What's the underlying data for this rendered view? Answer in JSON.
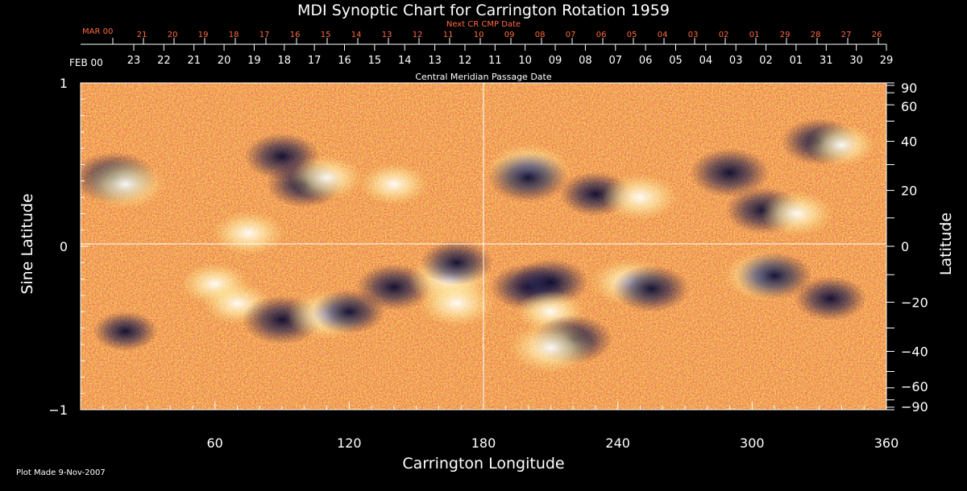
{
  "chart_data": {
    "type": "heatmap",
    "title": "MDI Synoptic Chart for Carrington Rotation 1959",
    "xlabel": "Carrington Longitude",
    "ylabel_left": "Sine Latitude",
    "ylabel_right": "Latitude",
    "xlim": [
      0,
      360
    ],
    "ylim": [
      -1,
      1
    ],
    "x_ticks": [
      60,
      120,
      180,
      240,
      300,
      360
    ],
    "y_left_ticks": [
      1,
      0,
      -1
    ],
    "y_right_ticks": [
      90,
      60,
      40,
      20,
      0,
      -20,
      -40,
      -60,
      -90
    ],
    "grid_lines": {
      "longitude": 180,
      "sine_latitude": 0
    },
    "top_axis": {
      "label": "Central Meridian Passage Date",
      "start_label": "FEB 00",
      "dates": [
        "23",
        "22",
        "21",
        "20",
        "19",
        "18",
        "17",
        "16",
        "15",
        "14",
        "13",
        "12",
        "11",
        "10",
        "09",
        "08",
        "07",
        "06",
        "05",
        "04",
        "03",
        "02",
        "01",
        "31",
        "30",
        "29"
      ]
    },
    "next_axis": {
      "label": "Next CR CMP Date",
      "start_label": "MAR 00",
      "dates": [
        "21",
        "20",
        "19",
        "18",
        "17",
        "16",
        "15",
        "14",
        "13",
        "12",
        "11",
        "10",
        "09",
        "08",
        "07",
        "06",
        "05",
        "04",
        "03",
        "02",
        "01",
        "29",
        "28",
        "27",
        "26"
      ]
    },
    "colors": {
      "negative": "#14143c",
      "background": "#e8481e",
      "positive": "#fff4c8",
      "next_axis": "#ff6a3d"
    },
    "regions": [
      {
        "lon": 15,
        "slat": 0.42,
        "polarity": "negative",
        "strength": 1.0
      },
      {
        "lon": 20,
        "slat": 0.38,
        "polarity": "positive",
        "strength": 0.9
      },
      {
        "lon": 90,
        "slat": 0.55,
        "polarity": "negative",
        "strength": 0.8
      },
      {
        "lon": 100,
        "slat": 0.38,
        "polarity": "negative",
        "strength": 0.8
      },
      {
        "lon": 110,
        "slat": 0.42,
        "polarity": "positive",
        "strength": 0.7
      },
      {
        "lon": 75,
        "slat": 0.08,
        "polarity": "positive",
        "strength": 0.7
      },
      {
        "lon": 140,
        "slat": 0.38,
        "polarity": "positive",
        "strength": 0.6
      },
      {
        "lon": 200,
        "slat": 0.47,
        "polarity": "positive",
        "strength": 1.0
      },
      {
        "lon": 200,
        "slat": 0.42,
        "polarity": "negative",
        "strength": 0.9
      },
      {
        "lon": 230,
        "slat": 0.32,
        "polarity": "negative",
        "strength": 0.7
      },
      {
        "lon": 250,
        "slat": 0.3,
        "polarity": "positive",
        "strength": 0.8
      },
      {
        "lon": 290,
        "slat": 0.45,
        "polarity": "negative",
        "strength": 0.9
      },
      {
        "lon": 305,
        "slat": 0.22,
        "polarity": "negative",
        "strength": 0.8
      },
      {
        "lon": 320,
        "slat": 0.2,
        "polarity": "positive",
        "strength": 0.7
      },
      {
        "lon": 330,
        "slat": 0.64,
        "polarity": "negative",
        "strength": 0.8
      },
      {
        "lon": 340,
        "slat": 0.62,
        "polarity": "positive",
        "strength": 0.6
      },
      {
        "lon": 60,
        "slat": -0.23,
        "polarity": "positive",
        "strength": 0.6
      },
      {
        "lon": 70,
        "slat": -0.35,
        "polarity": "positive",
        "strength": 0.6
      },
      {
        "lon": 90,
        "slat": -0.45,
        "polarity": "negative",
        "strength": 0.9
      },
      {
        "lon": 110,
        "slat": -0.42,
        "polarity": "positive",
        "strength": 0.9
      },
      {
        "lon": 120,
        "slat": -0.4,
        "polarity": "negative",
        "strength": 0.7
      },
      {
        "lon": 140,
        "slat": -0.25,
        "polarity": "negative",
        "strength": 0.8
      },
      {
        "lon": 165,
        "slat": -0.2,
        "polarity": "positive",
        "strength": 1.0
      },
      {
        "lon": 168,
        "slat": -0.35,
        "polarity": "positive",
        "strength": 0.8
      },
      {
        "lon": 168,
        "slat": -0.1,
        "polarity": "negative",
        "strength": 0.7
      },
      {
        "lon": 200,
        "slat": -0.25,
        "polarity": "negative",
        "strength": 0.8
      },
      {
        "lon": 210,
        "slat": -0.22,
        "polarity": "negative",
        "strength": 0.8
      },
      {
        "lon": 210,
        "slat": -0.4,
        "polarity": "positive",
        "strength": 0.6
      },
      {
        "lon": 220,
        "slat": -0.57,
        "polarity": "negative",
        "strength": 0.9
      },
      {
        "lon": 210,
        "slat": -0.62,
        "polarity": "positive",
        "strength": 1.0
      },
      {
        "lon": 245,
        "slat": -0.22,
        "polarity": "positive",
        "strength": 0.8
      },
      {
        "lon": 255,
        "slat": -0.26,
        "polarity": "negative",
        "strength": 0.8
      },
      {
        "lon": 305,
        "slat": -0.18,
        "polarity": "positive",
        "strength": 0.9
      },
      {
        "lon": 310,
        "slat": -0.18,
        "polarity": "negative",
        "strength": 0.8
      },
      {
        "lon": 335,
        "slat": -0.32,
        "polarity": "negative",
        "strength": 0.7
      },
      {
        "lon": 20,
        "slat": -0.52,
        "polarity": "negative",
        "strength": 0.5
      }
    ]
  },
  "footer": {
    "plot_made": "Plot Made  9-Nov-2007"
  }
}
